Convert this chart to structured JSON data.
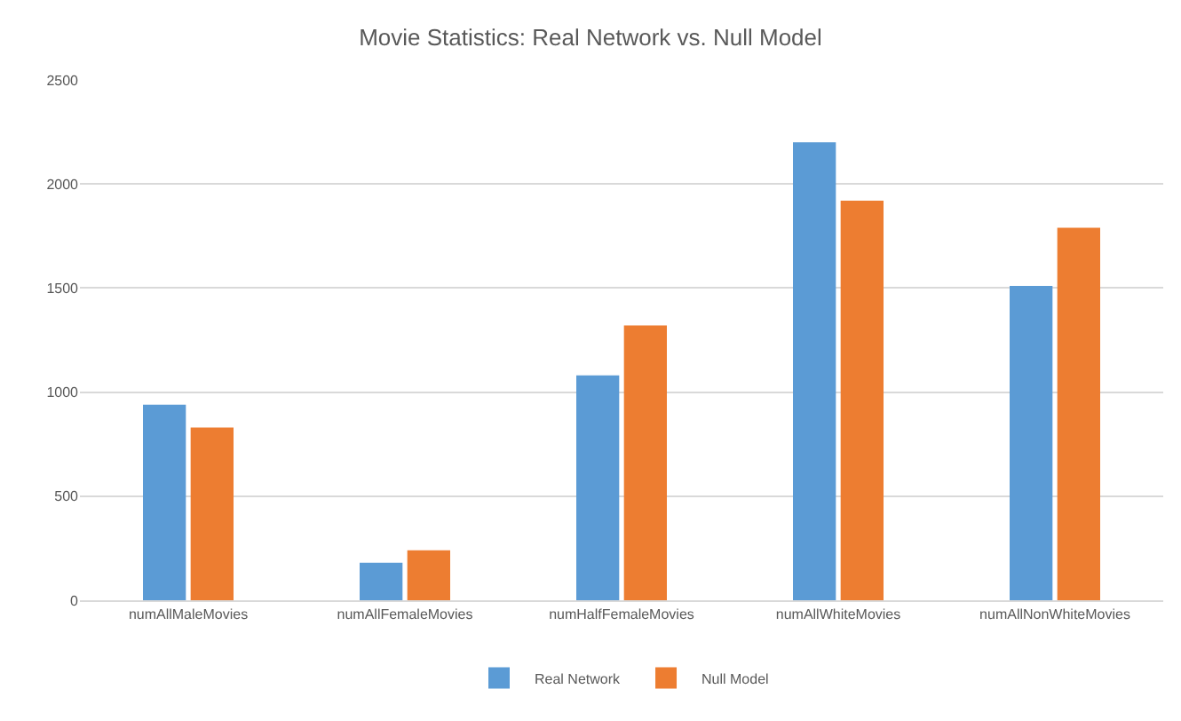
{
  "chart_data": {
    "type": "bar",
    "title": "Movie Statistics: Real Network vs. Null Model",
    "categories": [
      "numAllMaleMovies",
      "numAllFemaleMovies",
      "numHalfFemaleMovies",
      "numAllWhiteMovies",
      "numAllNonWhiteMovies"
    ],
    "series": [
      {
        "name": "Real Network",
        "color": "#5b9bd5",
        "values": [
          940,
          180,
          1080,
          2200,
          1510
        ]
      },
      {
        "name": "Null Model",
        "color": "#ed7d31",
        "values": [
          830,
          240,
          1320,
          1920,
          1790
        ]
      }
    ],
    "ylim": [
      0,
      2500
    ],
    "yticks": [
      0,
      500,
      1000,
      1500,
      2000,
      2500
    ],
    "grid": "y",
    "legend": "bottom"
  }
}
